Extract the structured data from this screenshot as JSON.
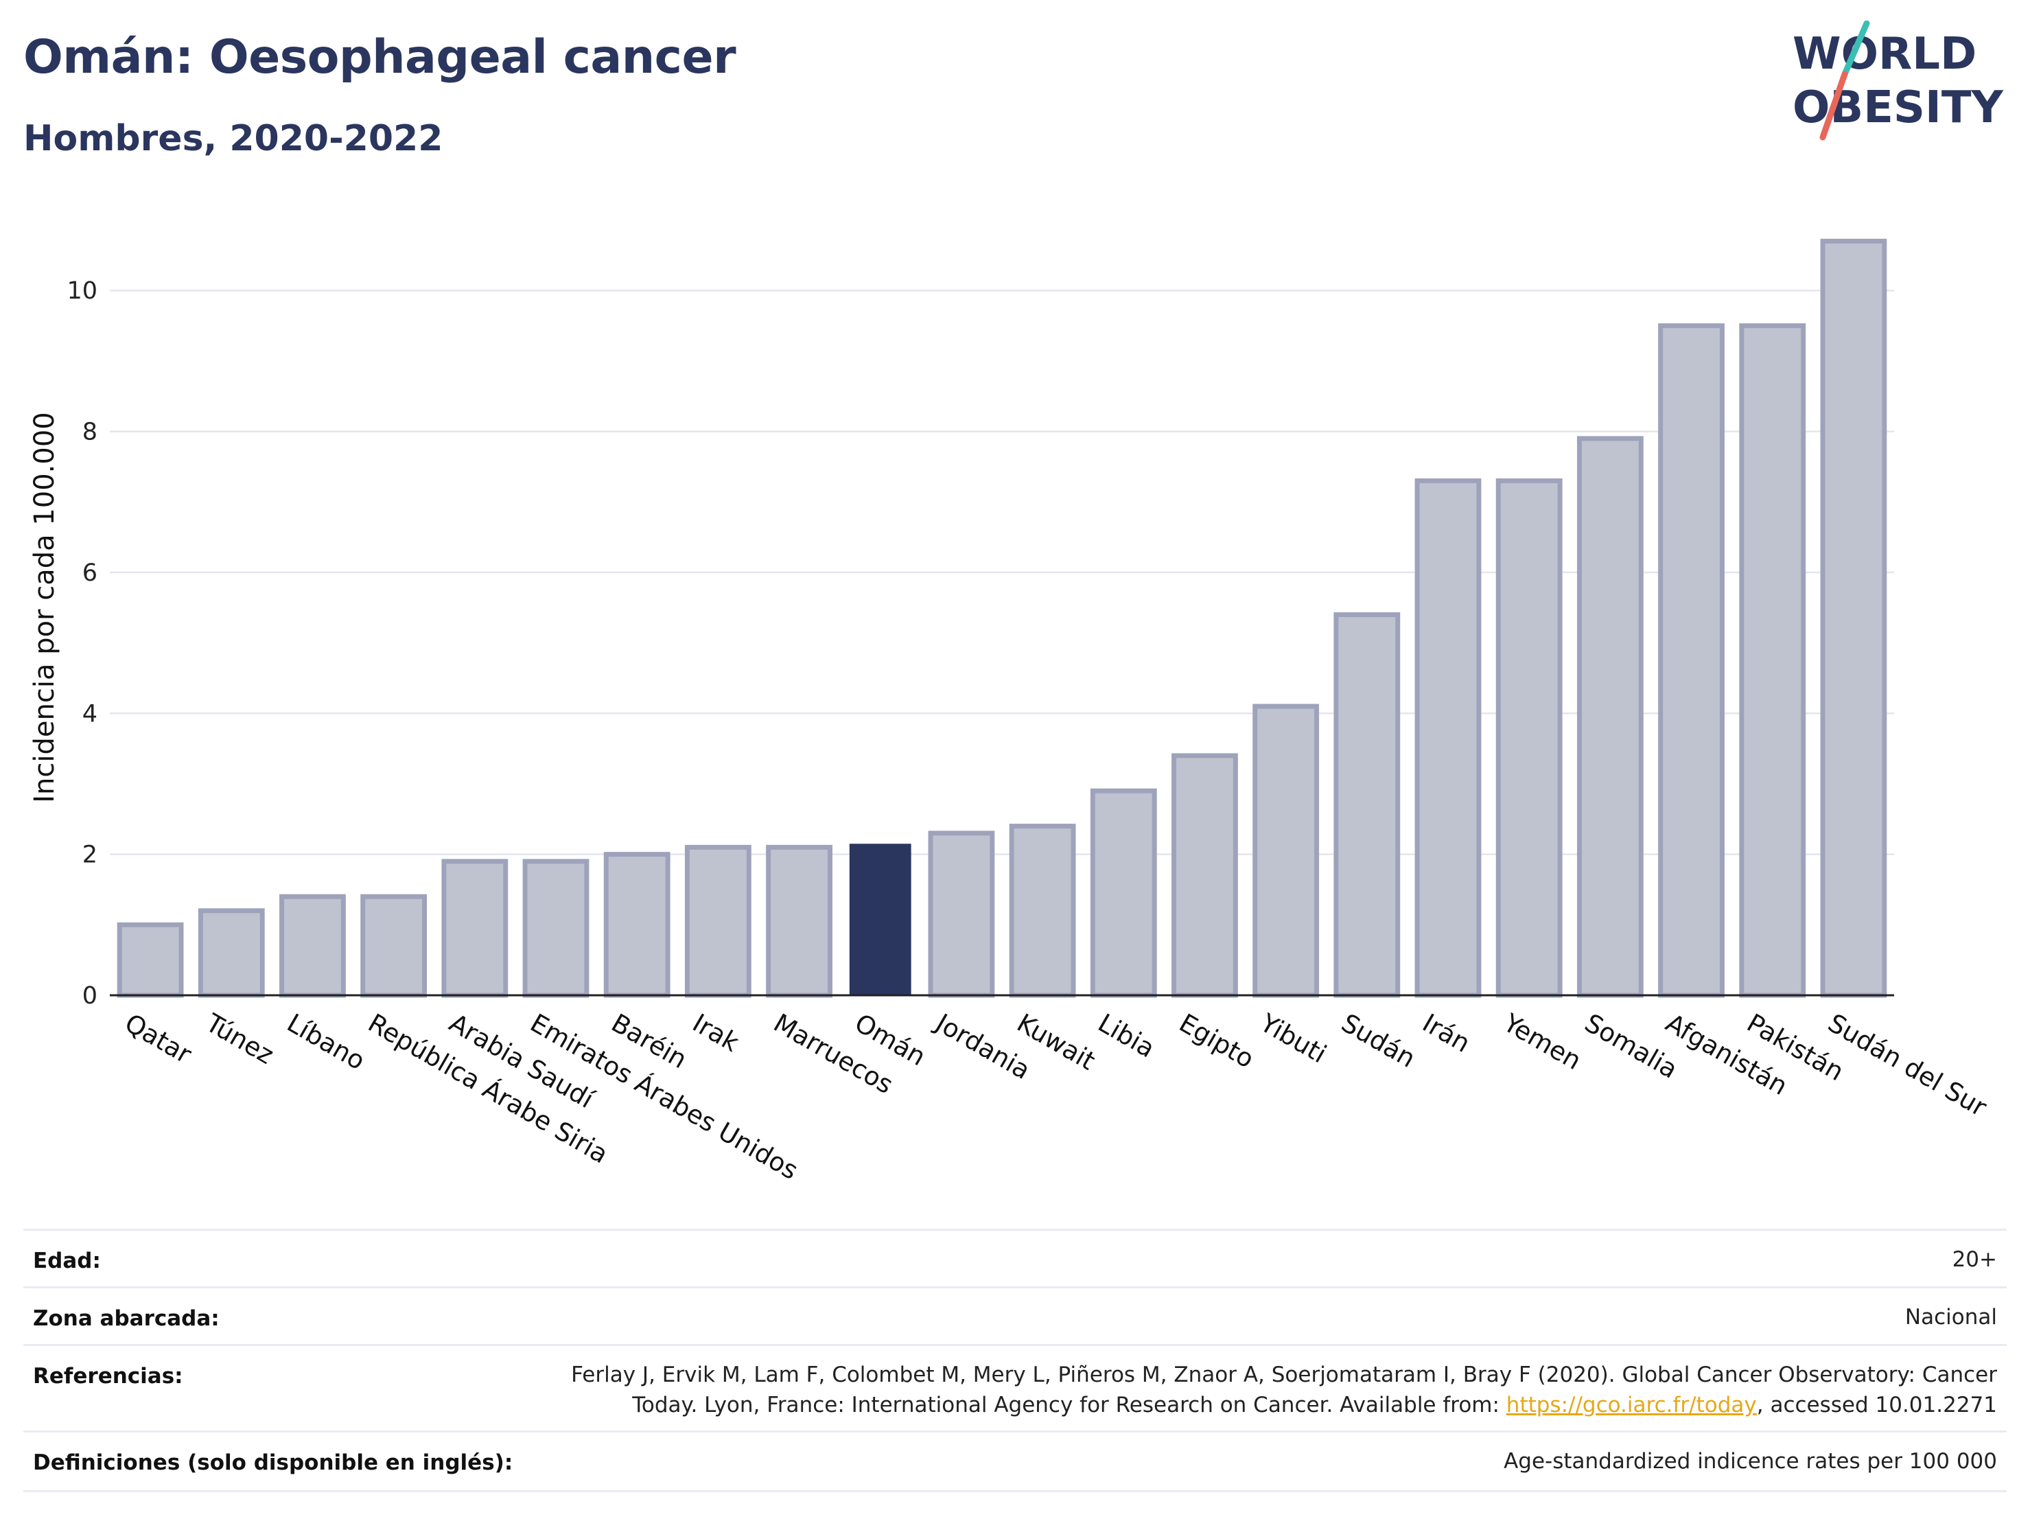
{
  "header": {
    "title": "Omán: Oesophageal cancer",
    "subtitle": "Hombres, 2020-2022"
  },
  "logo": {
    "line1": "WORLD",
    "line2": "OBESITY",
    "colors": {
      "text": "#2b365f",
      "slash_top": "#3bbfb3",
      "slash_bottom": "#e8675a"
    }
  },
  "chart_data": {
    "type": "bar",
    "ylabel": "Incidencia por cada 100.000",
    "xlabel": "",
    "ylim": [
      0,
      11.2
    ],
    "yticks": [
      0,
      2,
      4,
      6,
      8,
      10
    ],
    "grid": true,
    "highlight": "Omán",
    "colors": {
      "bar": "#bfc3d0",
      "bar_border": "#9ea3bb",
      "highlight": "#2b365f",
      "grid": "#e4e6ee"
    },
    "categories": [
      "Qatar",
      "Túnez",
      "Líbano",
      "República Árabe Siria",
      "Arabia Saudí",
      "Emiratos Árabes Unidos",
      "Baréin",
      "Irak",
      "Marruecos",
      "Omán",
      "Jordania",
      "Kuwait",
      "Libia",
      "Egipto",
      "Yibuti",
      "Sudán",
      "Irán",
      "Yemen",
      "Somalia",
      "Afganistán",
      "Pakistán",
      "Sudán del Sur"
    ],
    "values": [
      1.0,
      1.2,
      1.4,
      1.4,
      1.9,
      1.9,
      2.0,
      2.1,
      2.1,
      2.15,
      2.3,
      2.4,
      2.9,
      3.4,
      4.1,
      5.4,
      7.3,
      7.3,
      7.9,
      9.5,
      9.5,
      10.7
    ]
  },
  "meta": {
    "age": {
      "label": "Edad:",
      "value": "20+"
    },
    "zone": {
      "label": "Zona abarcada:",
      "value": "Nacional"
    },
    "refs": {
      "label": "Referencias:",
      "line1": "Ferlay J, Ervik M, Lam F, Colombet M, Mery L, Piñeros M, Znaor A, Soerjomataram I, Bray F (2020). Global Cancer Observatory: Cancer",
      "line2_pre": "Today. Lyon, France: International Agency for Research on Cancer. Available from: ",
      "link": "https://gco.iarc.fr/today",
      "line2_post": ", accessed 10.01.2271"
    },
    "defs": {
      "label": "Definiciones (solo disponible en inglés):",
      "value": "Age-standardized indicence rates per 100 000"
    }
  }
}
